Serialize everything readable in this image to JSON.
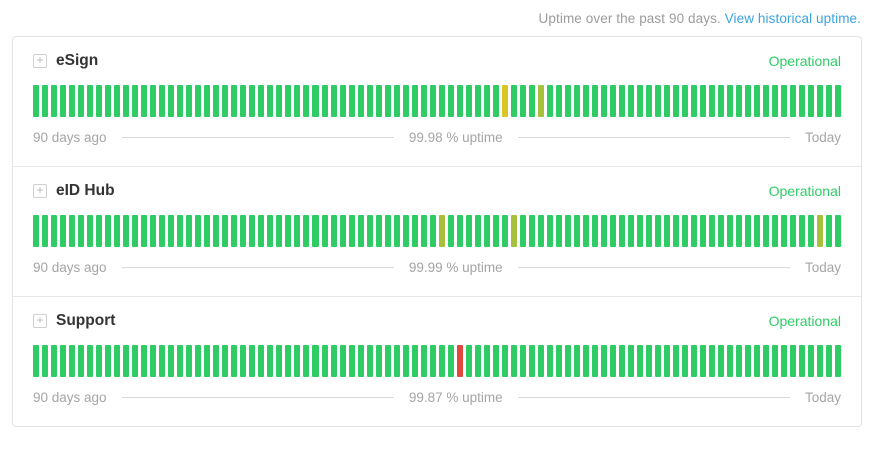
{
  "header": {
    "prefix": "Uptime over the past 90 days. ",
    "link": "View historical uptime."
  },
  "legend": {
    "left": "90 days ago",
    "right": "Today"
  },
  "colors": {
    "green": "#2fcc66",
    "yellow": "#d9c525",
    "lime": "#a8c13c",
    "red": "#e2483d",
    "operational": "#2fcc66",
    "link": "#3ba3df"
  },
  "services": [
    {
      "name": "eSign",
      "status": "Operational",
      "uptime": "99.98 % uptime",
      "days": 90,
      "anomalies": {
        "52": "yellow",
        "56": "lime"
      }
    },
    {
      "name": "eID Hub",
      "status": "Operational",
      "uptime": "99.99 % uptime",
      "days": 90,
      "anomalies": {
        "45": "lime",
        "53": "lime",
        "87": "lime"
      }
    },
    {
      "name": "Support",
      "status": "Operational",
      "uptime": "99.87 % uptime",
      "days": 90,
      "anomalies": {
        "47": "red"
      }
    }
  ]
}
